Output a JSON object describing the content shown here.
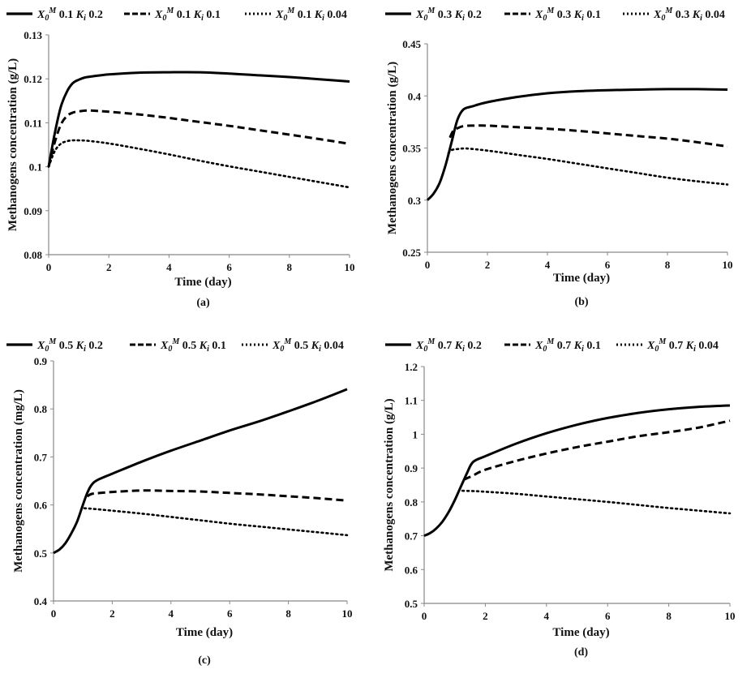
{
  "chart_data": [
    {
      "type": "line",
      "panel_label": "(a)",
      "xlabel": "Time (day)",
      "ylabel": "Methanogens concentration (g/L)",
      "xlim": [
        0,
        10
      ],
      "ylim": [
        0.08,
        0.13
      ],
      "xticks": [
        "0",
        "2",
        "4",
        "6",
        "8",
        "10"
      ],
      "yticks": [
        "0.08",
        "0.09",
        "0.1",
        "0.11",
        "0.12",
        "0.13"
      ],
      "grid": false,
      "legend_position": "top",
      "legend": [
        {
          "x0": "0.1",
          "ki": "0.2",
          "style": "solid"
        },
        {
          "x0": "0.1",
          "ki": "0.1",
          "style": "dashed"
        },
        {
          "x0": "0.1",
          "ki": "0.04",
          "style": "dotted"
        }
      ],
      "series": [
        {
          "name": "X0M 0.1 Ki 0.2",
          "style": "solid",
          "x": [
            0,
            0.2,
            0.4,
            0.6,
            0.8,
            1.0,
            1.2,
            1.5,
            2,
            3,
            4,
            5,
            6,
            7,
            8,
            9,
            10
          ],
          "y": [
            0.1,
            0.1075,
            0.1135,
            0.117,
            0.119,
            0.1198,
            0.1203,
            0.1206,
            0.121,
            0.1214,
            0.1215,
            0.1215,
            0.1212,
            0.1208,
            0.1204,
            0.1199,
            0.1194
          ]
        },
        {
          "name": "X0M 0.1 Ki 0.1",
          "style": "dashed",
          "x": [
            0,
            0.2,
            0.4,
            0.6,
            0.8,
            1.0,
            1.3,
            1.6,
            2,
            3,
            4,
            5,
            6,
            7,
            8,
            9,
            10
          ],
          "y": [
            0.1,
            0.1055,
            0.1095,
            0.1115,
            0.1123,
            0.1126,
            0.1128,
            0.1127,
            0.1125,
            0.1119,
            0.1111,
            0.1102,
            0.1093,
            0.1083,
            0.1073,
            0.1063,
            0.1052
          ]
        },
        {
          "name": "X0M 0.1 Ki 0.04",
          "style": "dotted",
          "x": [
            0,
            0.2,
            0.4,
            0.6,
            0.8,
            1.0,
            1.3,
            2,
            3,
            4,
            5,
            6,
            7,
            8,
            9,
            10
          ],
          "y": [
            0.1,
            0.1035,
            0.1052,
            0.1058,
            0.106,
            0.106,
            0.1059,
            0.1053,
            0.1041,
            0.1028,
            0.1014,
            0.1001,
            0.0989,
            0.0977,
            0.0965,
            0.0953
          ]
        }
      ]
    },
    {
      "type": "line",
      "panel_label": "(b)",
      "xlabel": "Time (day)",
      "ylabel": "Methanogens concentration (g/L)",
      "xlim": [
        0,
        10
      ],
      "ylim": [
        0.25,
        0.45
      ],
      "xticks": [
        "0",
        "2",
        "4",
        "6",
        "8",
        "10"
      ],
      "yticks": [
        "0.25",
        "0.3",
        "0.35",
        "0.4",
        "0.45"
      ],
      "grid": false,
      "legend_position": "top",
      "legend": [
        {
          "x0": "0.3",
          "ki": "0.2",
          "style": "solid"
        },
        {
          "x0": "0.3",
          "ki": "0.1",
          "style": "dashed"
        },
        {
          "x0": "0.3",
          "ki": "0.04",
          "style": "dotted"
        }
      ],
      "series": [
        {
          "name": "X0M 0.3 Ki 0.2",
          "style": "solid",
          "x": [
            0,
            0.2,
            0.4,
            0.6,
            0.8,
            1.0,
            1.2,
            1.5,
            2,
            3,
            4,
            5,
            6,
            7,
            8,
            9,
            10
          ],
          "y": [
            0.3,
            0.306,
            0.316,
            0.333,
            0.355,
            0.377,
            0.387,
            0.39,
            0.394,
            0.399,
            0.4025,
            0.4045,
            0.4055,
            0.406,
            0.4065,
            0.4065,
            0.406
          ]
        },
        {
          "name": "X0M 0.3 Ki 0.1",
          "style": "dashed",
          "x": [
            0.75,
            0.85,
            1.0,
            1.2,
            1.5,
            2,
            3,
            4,
            5,
            6,
            7,
            8,
            9,
            10
          ],
          "y": [
            0.36,
            0.366,
            0.369,
            0.371,
            0.3715,
            0.3715,
            0.37,
            0.3685,
            0.3665,
            0.364,
            0.3615,
            0.359,
            0.3555,
            0.3515
          ]
        },
        {
          "name": "X0M 0.3 Ki 0.04",
          "style": "dotted",
          "x": [
            0.7,
            0.8,
            1.0,
            1.3,
            2,
            3,
            4,
            5,
            6,
            7,
            8,
            9,
            10
          ],
          "y": [
            0.345,
            0.348,
            0.349,
            0.3495,
            0.3475,
            0.3435,
            0.3395,
            0.335,
            0.3305,
            0.326,
            0.3215,
            0.318,
            0.315
          ]
        }
      ]
    },
    {
      "type": "line",
      "panel_label": "(c)",
      "xlabel": "Time (day)",
      "ylabel": "Methanogens concentration (mg/L)",
      "xlim": [
        0,
        10
      ],
      "ylim": [
        0.4,
        0.9
      ],
      "xticks": [
        "0",
        "2",
        "4",
        "6",
        "8",
        "10"
      ],
      "yticks": [
        "0.4",
        "0.5",
        "0.6",
        "0.7",
        "0.8",
        "0.9"
      ],
      "grid": false,
      "legend_position": "top",
      "legend": [
        {
          "x0": "0.5",
          "ki": "0.2",
          "style": "solid"
        },
        {
          "x0": "0.5",
          "ki": "0.1",
          "style": "dashed"
        },
        {
          "x0": "0.5",
          "ki": "0.04",
          "style": "dotted"
        }
      ],
      "series": [
        {
          "name": "X0M 0.5 Ki 0.2",
          "style": "solid",
          "x": [
            0,
            0.2,
            0.4,
            0.6,
            0.8,
            1.0,
            1.15,
            1.3,
            1.5,
            2,
            3,
            4,
            5,
            6,
            7,
            8,
            9,
            10
          ],
          "y": [
            0.5,
            0.507,
            0.52,
            0.54,
            0.565,
            0.6,
            0.625,
            0.642,
            0.652,
            0.665,
            0.69,
            0.713,
            0.734,
            0.755,
            0.774,
            0.795,
            0.817,
            0.841
          ]
        },
        {
          "name": "X0M 0.5 Ki 0.1",
          "style": "dashed",
          "x": [
            1.15,
            1.3,
            1.6,
            2,
            3,
            4,
            5,
            6,
            7,
            8,
            9,
            10
          ],
          "y": [
            0.618,
            0.623,
            0.625,
            0.627,
            0.63,
            0.629,
            0.628,
            0.625,
            0.622,
            0.618,
            0.614,
            0.609
          ]
        },
        {
          "name": "X0M 0.5 Ki 0.04",
          "style": "dotted",
          "x": [
            1.05,
            1.3,
            2,
            3,
            4,
            5,
            6,
            7,
            8,
            9,
            10
          ],
          "y": [
            0.593,
            0.592,
            0.588,
            0.582,
            0.575,
            0.568,
            0.561,
            0.555,
            0.549,
            0.543,
            0.537
          ]
        }
      ]
    },
    {
      "type": "line",
      "panel_label": "(d)",
      "xlabel": "Time (day)",
      "ylabel": "Methanogens concentration (g/L)",
      "xlim": [
        0,
        10
      ],
      "ylim": [
        0.5,
        1.2
      ],
      "xticks": [
        "0",
        "2",
        "4",
        "6",
        "8",
        "10"
      ],
      "yticks": [
        "0.5",
        "0.6",
        "0.7",
        "0.8",
        "0.9",
        "1",
        "1.1",
        "1.2"
      ],
      "grid": false,
      "legend_position": "top",
      "legend": [
        {
          "x0": "0.7",
          "ki": "0.2",
          "style": "solid"
        },
        {
          "x0": "0.7",
          "ki": "0.1",
          "style": "dashed"
        },
        {
          "x0": "0.7",
          "ki": "0.04",
          "style": "dotted"
        }
      ],
      "series": [
        {
          "name": "X0M 0.7 Ki 0.2",
          "style": "solid",
          "x": [
            0,
            0.2,
            0.4,
            0.6,
            0.8,
            1.0,
            1.2,
            1.4,
            1.6,
            2,
            3,
            4,
            5,
            6,
            7,
            8,
            9,
            10
          ],
          "y": [
            0.7,
            0.708,
            0.722,
            0.742,
            0.77,
            0.805,
            0.845,
            0.885,
            0.918,
            0.935,
            0.972,
            1.003,
            1.028,
            1.048,
            1.063,
            1.074,
            1.081,
            1.085
          ]
        },
        {
          "name": "X0M 0.7 Ki 0.1",
          "style": "dashed",
          "x": [
            1.3,
            1.6,
            2,
            3,
            4,
            5,
            6,
            7,
            8,
            9,
            10
          ],
          "y": [
            0.866,
            0.878,
            0.895,
            0.921,
            0.943,
            0.962,
            0.978,
            0.994,
            1.006,
            1.02,
            1.04
          ]
        },
        {
          "name": "X0M 0.7 Ki 0.04",
          "style": "dotted",
          "x": [
            1.25,
            1.6,
            2,
            3,
            4,
            5,
            6,
            7,
            8,
            9,
            10
          ],
          "y": [
            0.833,
            0.832,
            0.83,
            0.824,
            0.816,
            0.808,
            0.8,
            0.791,
            0.782,
            0.774,
            0.766
          ]
        }
      ]
    }
  ]
}
